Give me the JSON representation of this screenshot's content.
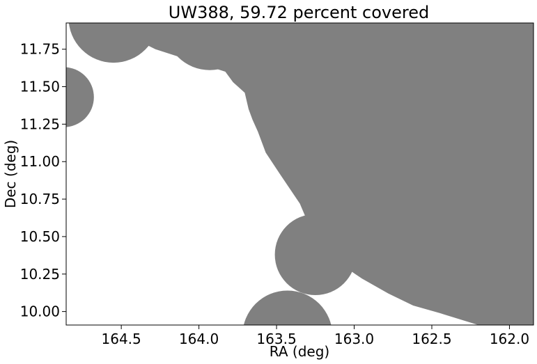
{
  "chart_data": {
    "type": "coverage_map",
    "title": "UW388, 59.72 percent covered",
    "xlabel": "RA (deg)",
    "ylabel": "Dec (deg)",
    "xlim": [
      164.855,
      161.845
    ],
    "ylim": [
      9.91,
      11.925
    ],
    "x_ticks": [
      164.5,
      164.0,
      163.5,
      163.0,
      162.5,
      162.0
    ],
    "x_tick_labels": [
      "164.5",
      "164.0",
      "163.5",
      "163.0",
      "162.5",
      "162.0"
    ],
    "y_ticks": [
      10.0,
      10.25,
      10.5,
      10.75,
      11.0,
      11.25,
      11.5,
      11.75
    ],
    "y_tick_labels": [
      "10.00",
      "10.25",
      "10.50",
      "10.75",
      "11.00",
      "11.25",
      "11.50",
      "11.75"
    ],
    "grid": false,
    "fill_color": "#808080",
    "covered_percent": 59.72,
    "coverage_disks": [
      {
        "ra": 164.55,
        "dec": 11.96,
        "r": 0.3
      },
      {
        "ra": 163.93,
        "dec": 11.91,
        "r": 0.3
      },
      {
        "ra": 164.87,
        "dec": 11.43,
        "r": 0.2
      },
      {
        "ra": 162.95,
        "dec": 11.05,
        "r": 0.5
      },
      {
        "ra": 163.25,
        "dec": 10.38,
        "r": 0.27
      },
      {
        "ra": 163.43,
        "dec": 9.84,
        "r": 0.3
      }
    ],
    "coverage_polygon": [
      [
        164.62,
        11.925
      ],
      [
        161.845,
        11.925
      ],
      [
        161.845,
        9.91
      ],
      [
        162.2,
        9.91
      ],
      [
        162.45,
        9.99
      ],
      [
        162.62,
        10.04
      ],
      [
        162.78,
        10.12
      ],
      [
        162.95,
        10.22
      ],
      [
        163.05,
        10.29
      ],
      [
        163.28,
        10.55
      ],
      [
        163.35,
        10.72
      ],
      [
        163.48,
        10.92
      ],
      [
        163.57,
        11.06
      ],
      [
        163.62,
        11.2
      ],
      [
        163.655,
        11.28
      ],
      [
        163.68,
        11.35
      ],
      [
        163.705,
        11.46
      ],
      [
        163.78,
        11.53
      ],
      [
        163.83,
        11.6
      ],
      [
        164.28,
        11.75
      ]
    ]
  }
}
